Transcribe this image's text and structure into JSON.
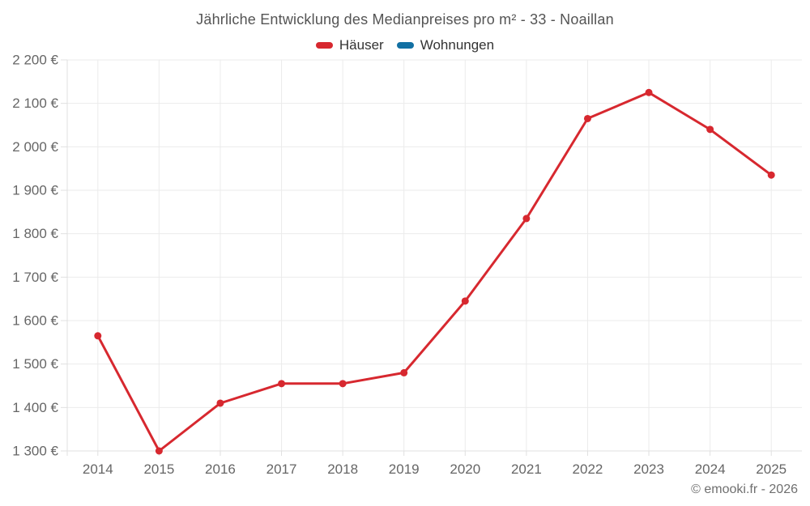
{
  "title": "Jährliche Entwicklung des Medianpreises pro m² - 33 - Noaillan",
  "footer": "© emooki.fr - 2026",
  "legend": [
    {
      "label": "Häuser",
      "color": "#d7282f"
    },
    {
      "label": "Wohnungen",
      "color": "#1270a3"
    }
  ],
  "chart_data": {
    "type": "line",
    "title": "Jährliche Entwicklung des Medianpreises pro m² - 33 - Noaillan",
    "categories": [
      "2014",
      "2015",
      "2016",
      "2017",
      "2018",
      "2019",
      "2020",
      "2021",
      "2022",
      "2023",
      "2024",
      "2025"
    ],
    "series": [
      {
        "name": "Häuser",
        "color": "#d7282f",
        "values": [
          1565,
          1300,
          1410,
          1455,
          1455,
          1480,
          1645,
          1835,
          2065,
          2125,
          2040,
          1935
        ]
      },
      {
        "name": "Wohnungen",
        "color": "#1270a3",
        "values": []
      }
    ],
    "xlabel": "",
    "ylabel": "",
    "ylim": [
      1300,
      2200
    ],
    "ytick_step": 100,
    "ytick_labels": [
      "1 300 €",
      "1 400 €",
      "1 500 €",
      "1 600 €",
      "1 700 €",
      "1 800 €",
      "1 900 €",
      "2 000 €",
      "2 100 €",
      "2 200 €"
    ],
    "currency_suffix": "€",
    "grid": true,
    "legend_position": "top",
    "marker": "circle"
  },
  "style": {
    "grid_color": "#ebebeb",
    "axis_color": "#e0e0e0",
    "tick_label_color": "#666666",
    "line_width": 3,
    "marker_radius": 4.5
  }
}
